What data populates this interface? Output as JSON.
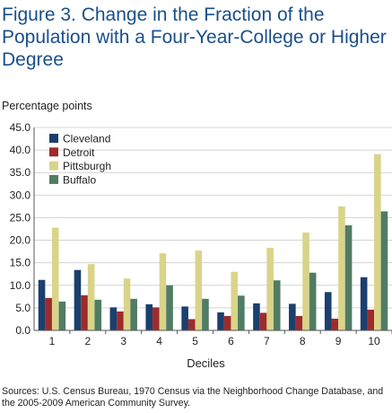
{
  "title": "Figure 3. Change in the Fraction of the Population with a Four-Year-College or Higher Degree",
  "source_note": "Sources: U.S. Census Bureau, 1970 Census via the Neighborhood Change Database, and the 2005-2009 American Community Survey.",
  "chart_data": {
    "type": "bar",
    "title": "Figure 3. Change in the Fraction of the Population with a Four-Year-College or Higher Degree",
    "xlabel": "Deciles",
    "ylabel": "Percentage points",
    "ylim": [
      0,
      45
    ],
    "yticks": [
      "0.0",
      "5.0",
      "10.0",
      "15.0",
      "20.0",
      "25.0",
      "30.0",
      "35.0",
      "40.0",
      "45.0"
    ],
    "categories": [
      "1",
      "2",
      "3",
      "4",
      "5",
      "6",
      "7",
      "8",
      "9",
      "10"
    ],
    "grid": "horizontal",
    "legend_position": "top-left",
    "series": [
      {
        "name": "Cleveland",
        "color": "#1b3f6e",
        "values": [
          11.2,
          13.4,
          5.1,
          5.8,
          5.3,
          4.0,
          6.0,
          5.9,
          8.5,
          11.8
        ]
      },
      {
        "name": "Detroit",
        "color": "#9e2b2b",
        "values": [
          7.2,
          7.8,
          4.2,
          5.1,
          2.5,
          3.2,
          3.9,
          3.2,
          2.6,
          4.6
        ]
      },
      {
        "name": "Pittsburgh",
        "color": "#d9d48a",
        "values": [
          22.8,
          14.7,
          11.5,
          17.1,
          17.7,
          13.0,
          18.3,
          21.7,
          27.5,
          39.1
        ]
      },
      {
        "name": "Buffalo",
        "color": "#517c64",
        "values": [
          6.4,
          6.8,
          7.0,
          10.0,
          7.0,
          7.7,
          11.1,
          12.8,
          23.3,
          26.4
        ]
      }
    ]
  }
}
